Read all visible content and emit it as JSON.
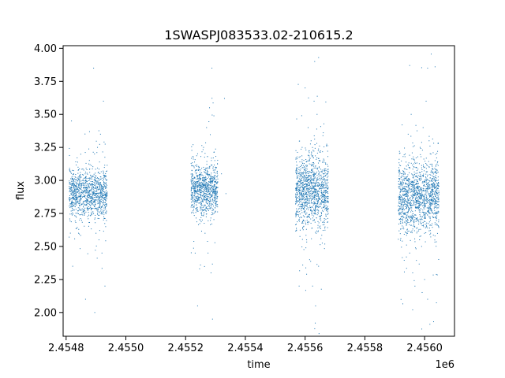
{
  "chart_data": {
    "type": "scatter",
    "title": "1SWASPJ083533.02-210615.2",
    "xlabel": "time",
    "ylabel": "flux",
    "x_offset_label": "1e6",
    "x_scale": 1000000,
    "xlim": [
      2454790,
      2456100
    ],
    "ylim": [
      1.82,
      4.02
    ],
    "x_ticks": [
      2454800,
      2455000,
      2455200,
      2455400,
      2455600,
      2455800,
      2456000
    ],
    "x_tick_labels": [
      "2.4548",
      "2.4550",
      "2.4552",
      "2.4554",
      "2.4556",
      "2.4558",
      "2.4560"
    ],
    "y_ticks": [
      2.0,
      2.25,
      2.5,
      2.75,
      3.0,
      3.25,
      3.5,
      3.75,
      4.0
    ],
    "y_tick_labels": [
      "2.00",
      "2.25",
      "2.50",
      "2.75",
      "3.00",
      "3.25",
      "3.50",
      "3.75",
      "4.00"
    ],
    "grid": false,
    "legend": "none",
    "point_color": "#1f77b4",
    "series": [
      {
        "points": [
          [
            2454820,
            2.92
          ],
          [
            2454825,
            3.05
          ],
          [
            2454830,
            2.8
          ],
          [
            2454835,
            2.95
          ],
          [
            2454840,
            3.1
          ],
          [
            2454845,
            2.7
          ],
          [
            2454850,
            2.88
          ],
          [
            2454855,
            3.0
          ],
          [
            2454860,
            2.78
          ],
          [
            2454865,
            3.02
          ],
          [
            2454870,
            2.85
          ],
          [
            2454875,
            2.97
          ],
          [
            2454880,
            3.12
          ],
          [
            2454885,
            2.74
          ],
          [
            2454890,
            2.9
          ],
          [
            2454895,
            3.2
          ],
          [
            2454900,
            2.6
          ],
          [
            2454905,
            3.25
          ],
          [
            2454910,
            2.55
          ],
          [
            2454915,
            3.35
          ],
          [
            2454920,
            2.45
          ],
          [
            2454925,
            3.6
          ],
          [
            2454930,
            2.2
          ],
          [
            2454892,
            3.85
          ],
          [
            2454896,
            2.0
          ],
          [
            2454818,
            3.45
          ],
          [
            2454822,
            2.35
          ],
          [
            2454865,
            2.1
          ],
          [
            2455230,
            2.92
          ],
          [
            2455235,
            3.05
          ],
          [
            2455240,
            2.78
          ],
          [
            2455245,
            3.1
          ],
          [
            2455250,
            2.7
          ],
          [
            2455255,
            2.95
          ],
          [
            2455260,
            3.25
          ],
          [
            2455265,
            2.6
          ],
          [
            2455270,
            3.4
          ],
          [
            2455275,
            2.45
          ],
          [
            2455280,
            3.55
          ],
          [
            2455285,
            2.3
          ],
          [
            2455290,
            3.0
          ],
          [
            2455295,
            2.85
          ],
          [
            2455300,
            3.1
          ],
          [
            2455305,
            2.88
          ],
          [
            2455288,
            3.85
          ],
          [
            2455290,
            1.95
          ],
          [
            2455240,
            2.05
          ],
          [
            2455330,
            3.62
          ],
          [
            2455320,
            3.05
          ],
          [
            2455335,
            2.9
          ],
          [
            2455575,
            2.95
          ],
          [
            2455580,
            3.1
          ],
          [
            2455585,
            2.8
          ],
          [
            2455590,
            3.25
          ],
          [
            2455595,
            2.65
          ],
          [
            2455600,
            3.0
          ],
          [
            2455605,
            2.55
          ],
          [
            2455610,
            3.4
          ],
          [
            2455615,
            2.4
          ],
          [
            2455620,
            3.3
          ],
          [
            2455625,
            2.2
          ],
          [
            2455630,
            3.6
          ],
          [
            2455635,
            2.05
          ],
          [
            2455640,
            3.5
          ],
          [
            2455645,
            2.35
          ],
          [
            2455650,
            3.15
          ],
          [
            2455655,
            2.75
          ],
          [
            2455660,
            3.05
          ],
          [
            2455665,
            2.85
          ],
          [
            2455670,
            2.95
          ],
          [
            2455632,
            3.9
          ],
          [
            2455634,
            1.92
          ],
          [
            2455580,
            2.2
          ],
          [
            2455600,
            3.7
          ],
          [
            2455920,
            2.92
          ],
          [
            2455925,
            3.05
          ],
          [
            2455930,
            2.75
          ],
          [
            2455935,
            3.2
          ],
          [
            2455940,
            2.6
          ],
          [
            2455945,
            3.35
          ],
          [
            2455950,
            2.45
          ],
          [
            2455955,
            3.5
          ],
          [
            2455960,
            2.3
          ],
          [
            2455965,
            3.1
          ],
          [
            2455970,
            2.8
          ],
          [
            2455975,
            3.0
          ],
          [
            2455980,
            2.7
          ],
          [
            2455985,
            3.25
          ],
          [
            2455990,
            2.5
          ],
          [
            2455995,
            3.4
          ],
          [
            2456000,
            2.25
          ],
          [
            2456005,
            3.6
          ],
          [
            2456010,
            2.1
          ],
          [
            2456015,
            3.3
          ],
          [
            2456020,
            2.6
          ],
          [
            2456025,
            3.0
          ],
          [
            2456030,
            2.85
          ],
          [
            2456035,
            3.15
          ],
          [
            2456040,
            2.75
          ],
          [
            2455950,
            3.87
          ],
          [
            2455960,
            2.02
          ],
          [
            2456010,
            3.85
          ],
          [
            2456030,
            1.93
          ],
          [
            2456035,
            3.86
          ]
        ]
      }
    ],
    "clusters": [
      {
        "x_start": 2454810,
        "x_end": 2454938,
        "n": 1100,
        "center": 2.9,
        "spread": 0.09
      },
      {
        "x_start": 2455218,
        "x_end": 2455308,
        "n": 900,
        "center": 2.93,
        "spread": 0.1
      },
      {
        "x_start": 2455568,
        "x_end": 2455678,
        "n": 1200,
        "center": 2.92,
        "spread": 0.13
      },
      {
        "x_start": 2455912,
        "x_end": 2456048,
        "n": 1400,
        "center": 2.88,
        "spread": 0.13
      }
    ]
  }
}
